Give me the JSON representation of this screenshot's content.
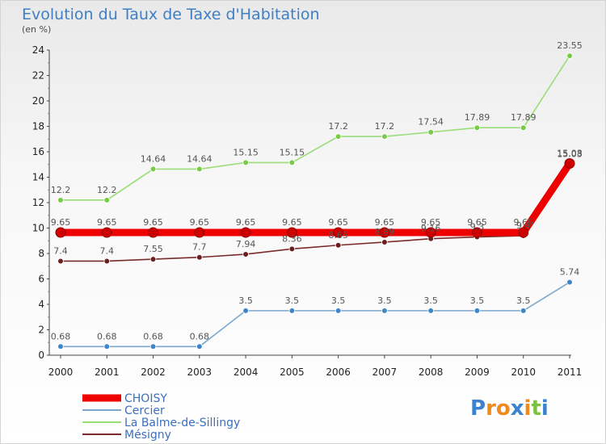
{
  "chart_data": {
    "type": "line",
    "title": "Evolution du Taux de Taxe d'Habitation",
    "subtitle": "(en %)",
    "x": [
      "2000",
      "2001",
      "2002",
      "2003",
      "2004",
      "2005",
      "2006",
      "2007",
      "2008",
      "2009",
      "2010",
      "2011"
    ],
    "ylim": [
      0,
      24
    ],
    "yticks": [
      0,
      2,
      4,
      6,
      8,
      10,
      12,
      14,
      16,
      18,
      20,
      22,
      24
    ],
    "grid": false,
    "legend_placement": "bottom-left",
    "series": [
      {
        "name": "CHOISY",
        "color": "#ee0000",
        "marker_color": "#cc0000",
        "values": [
          9.65,
          9.65,
          9.65,
          9.65,
          9.65,
          9.65,
          9.65,
          9.65,
          9.65,
          9.65,
          9.65,
          15.08
        ],
        "labels": [
          "9.65",
          "9.65",
          "9.65",
          "9.65",
          "9.65",
          "9.65",
          "9.65",
          "9.65",
          "9.65",
          "9.65",
          "9.65",
          "15.08"
        ]
      },
      {
        "name": "Cercier",
        "color": "#7ba7cf",
        "marker_color": "#3f86c8",
        "values": [
          0.68,
          0.68,
          0.68,
          0.68,
          3.5,
          3.5,
          3.5,
          3.5,
          3.5,
          3.5,
          3.5,
          5.74
        ],
        "labels": [
          "0.68",
          "0.68",
          "0.68",
          "0.68",
          "3.5",
          "3.5",
          "3.5",
          "3.5",
          "3.5",
          "3.5",
          "3.5",
          "5.74"
        ]
      },
      {
        "name": "La Balme-de-Sillingy",
        "color": "#99dd77",
        "marker_color": "#77cc44",
        "values": [
          12.2,
          12.2,
          14.64,
          14.64,
          15.15,
          15.15,
          17.2,
          17.2,
          17.54,
          17.89,
          17.89,
          23.55
        ],
        "labels": [
          "12.2",
          "12.2",
          "14.64",
          "14.64",
          "15.15",
          "15.15",
          "17.2",
          "17.2",
          "17.54",
          "17.89",
          "17.89",
          "23.55"
        ]
      },
      {
        "name": "Mésigny",
        "color": "#7a2b2b",
        "marker_color": "#6a1f1f",
        "values": [
          7.4,
          7.4,
          7.55,
          7.7,
          7.94,
          8.36,
          8.65,
          8.89,
          9.16,
          9.3,
          9.4,
          15.03
        ],
        "labels": [
          "7.4",
          "7.4",
          "7.55",
          "7.7",
          "7.94",
          "8.36",
          "8.65",
          "8.89",
          "9.16",
          "9.3",
          "9.4",
          "15.03"
        ]
      }
    ]
  },
  "logo": {
    "text": "Proxiti",
    "letters": [
      "P",
      "r",
      "o",
      "x",
      "i",
      "t",
      "i"
    ],
    "colors": [
      "#3b82d1",
      "#f08a1c",
      "#f08a1c",
      "#3b82d1",
      "#f08a1c",
      "#7cc242",
      "#3b82d1"
    ]
  }
}
